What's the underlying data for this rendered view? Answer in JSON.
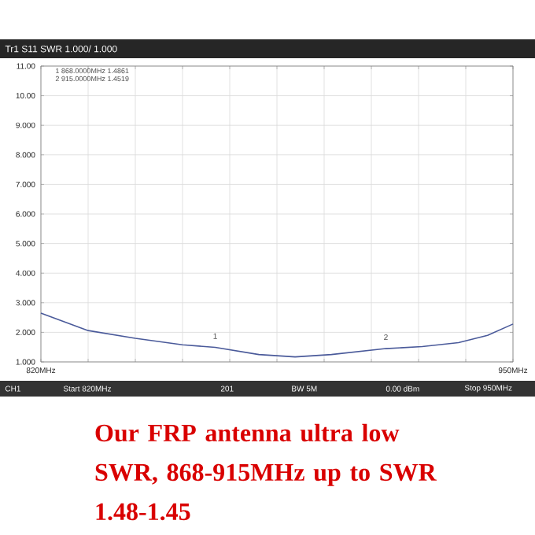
{
  "chart_data": {
    "type": "line",
    "title": "Our FRP antenna ultra low SWR, 868-915MHz up to SWR 1.48-1.45",
    "x": [
      820,
      833,
      846,
      859,
      868,
      880,
      890,
      900,
      915,
      925,
      935,
      943,
      950
    ],
    "series": [
      {
        "color": "#4a5a9a",
        "values": [
          2.65,
          2.06,
          1.8,
          1.58,
          1.49,
          1.25,
          1.17,
          1.25,
          1.45,
          1.52,
          1.65,
          1.9,
          2.28
        ]
      }
    ],
    "xlim": [
      820,
      950
    ],
    "xticks": [
      {
        "value": 820,
        "label": "820MHz"
      },
      {
        "value": 833,
        "label": null
      },
      {
        "value": 846,
        "label": null
      },
      {
        "value": 859,
        "label": null
      },
      {
        "value": 872,
        "label": null
      },
      {
        "value": 885,
        "label": null
      },
      {
        "value": 898,
        "label": null
      },
      {
        "value": 911,
        "label": null
      },
      {
        "value": 924,
        "label": null
      },
      {
        "value": 937,
        "label": null
      },
      {
        "value": 950,
        "label": "950MHz"
      }
    ],
    "ylim": [
      1,
      11
    ],
    "yticks": [
      {
        "value": 1,
        "label": "1.000"
      },
      {
        "value": 2,
        "label": "2.000"
      },
      {
        "value": 3,
        "label": "3.000"
      },
      {
        "value": 4,
        "label": "4.000"
      },
      {
        "value": 5,
        "label": "5.000"
      },
      {
        "value": 6,
        "label": "6.000"
      },
      {
        "value": 7,
        "label": "7.000"
      },
      {
        "value": 8,
        "label": "8.000"
      },
      {
        "value": 9,
        "label": "9.000"
      },
      {
        "value": 10,
        "label": "10.00"
      },
      {
        "value": 11,
        "label": "11.00"
      }
    ],
    "grid": true,
    "annotations": [
      "Tr1 S11 SWR 1.000/ 1.000",
      "1   868.0000MHz   1.4861",
      "2   915.0000MHz   1.4519",
      {
        "text": "1",
        "x": 868,
        "y": 1.4861
      },
      {
        "text": "2",
        "x": 915,
        "y": 1.4519
      },
      "CH1",
      "Start 820MHz",
      "201",
      "BW 5M",
      "0.00 dBm",
      "Stop 950MHz"
    ]
  }
}
